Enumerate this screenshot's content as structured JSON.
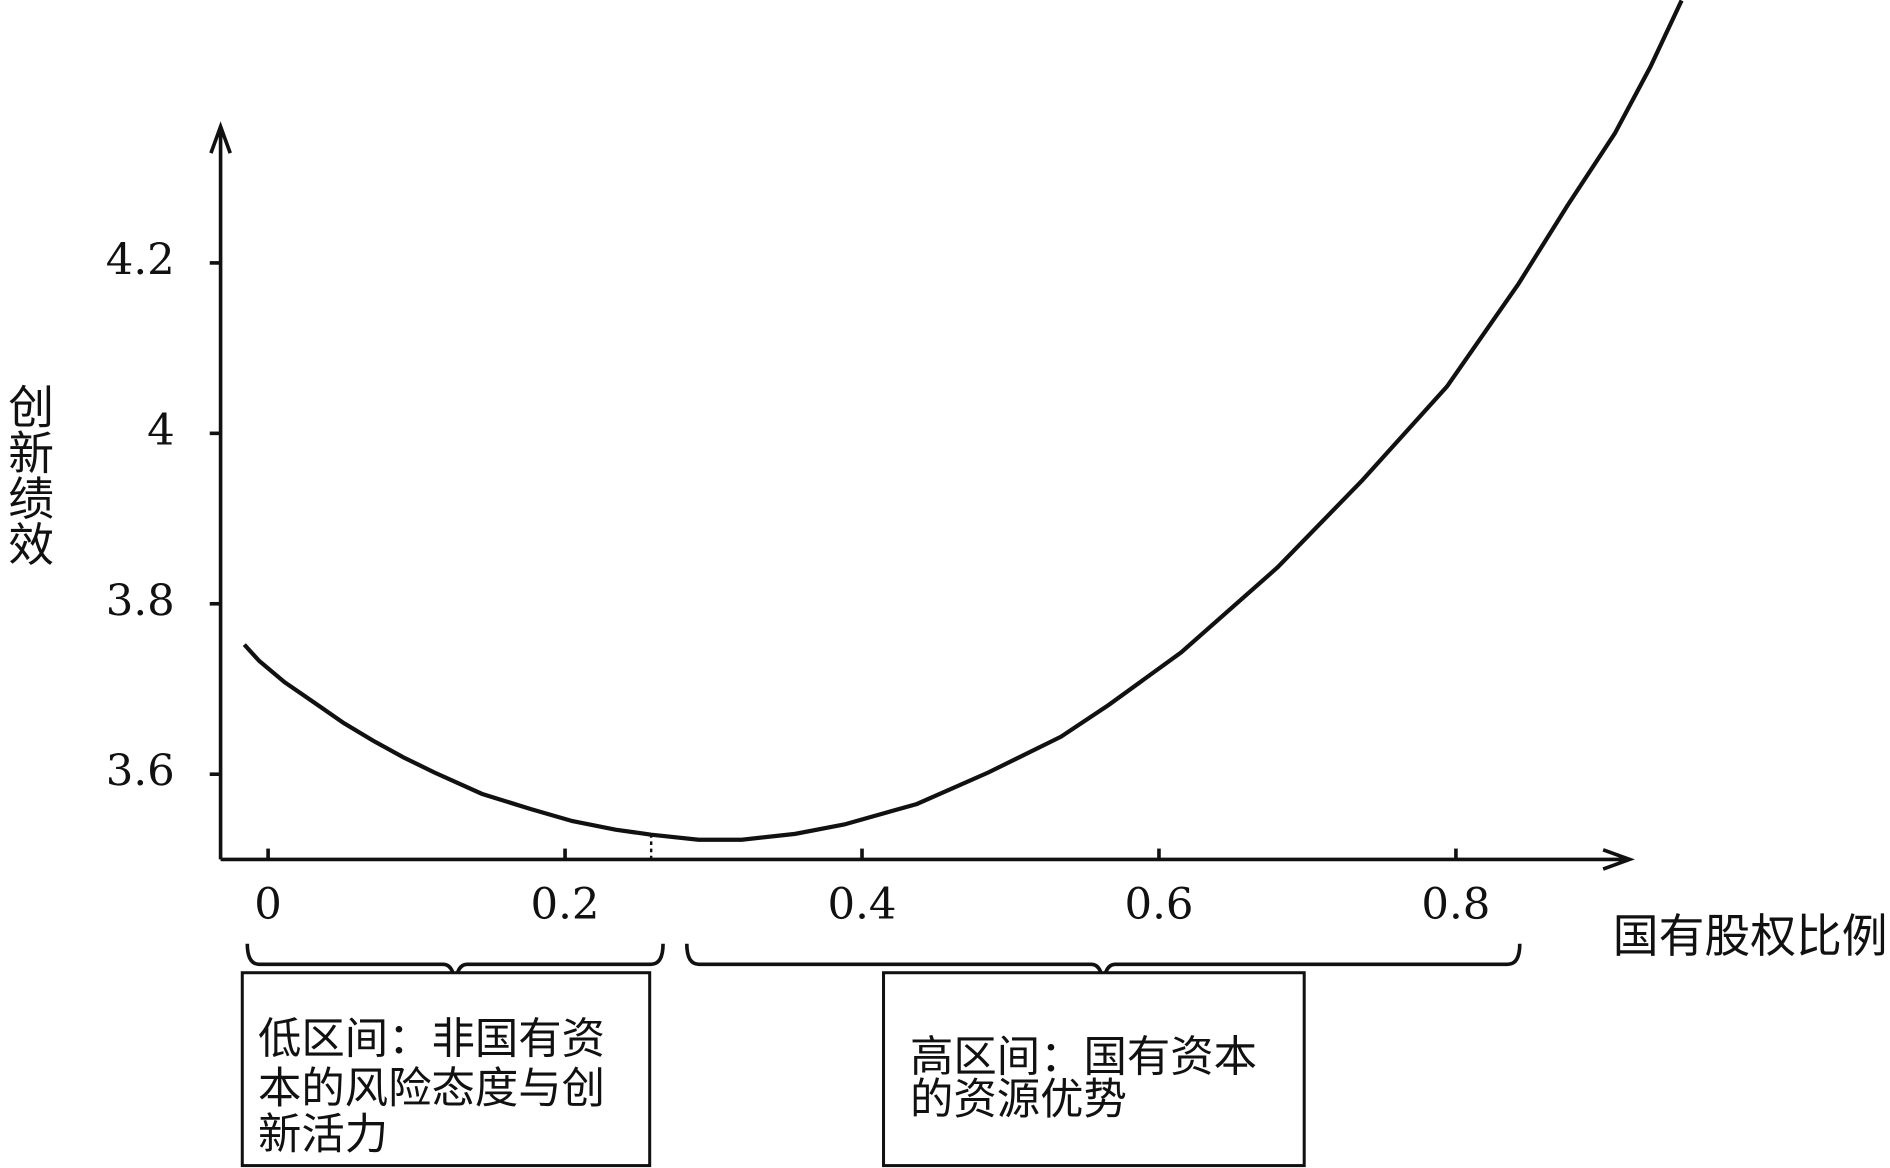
{
  "chart_data": {
    "type": "line",
    "y_label": "创新绩效",
    "x_label": "国有股权比例",
    "xlim": [
      -0.032,
      0.917
    ],
    "ylim": [
      3.5,
      4.36
    ],
    "xticks": [
      0,
      0.2,
      0.4,
      0.6,
      0.8
    ],
    "yticks": [
      3.6,
      3.8,
      4,
      4.2
    ],
    "color": "#111111",
    "series": [
      {
        "x": [
          -0.016,
          -0.006,
          0.011,
          0.032,
          0.051,
          0.071,
          0.091,
          0.112,
          0.144,
          0.177,
          0.205,
          0.234,
          0.258,
          0.29,
          0.319,
          0.355,
          0.388,
          0.437,
          0.485,
          0.534,
          0.566,
          0.615,
          0.68,
          0.737,
          0.794,
          0.842,
          0.875,
          0.907,
          0.931,
          0.952
        ],
        "values": [
          3.752,
          3.733,
          3.708,
          3.683,
          3.66,
          3.639,
          3.62,
          3.602,
          3.577,
          3.559,
          3.545,
          3.535,
          3.529,
          3.523,
          3.523,
          3.53,
          3.541,
          3.565,
          3.602,
          3.644,
          3.681,
          3.743,
          3.843,
          3.945,
          4.055,
          4.175,
          4.267,
          4.352,
          4.43,
          4.508
        ]
      }
    ],
    "threshold": {
      "x": 0.258,
      "y": 3.529
    },
    "annotations": [
      {
        "range": [
          -0.014,
          0.266
        ],
        "lines": [
          "低区间：非国有资",
          "本的风险态度与创",
          "新活力"
        ]
      },
      {
        "range": [
          0.282,
          0.843
        ],
        "lines": [
          "高区间：国有资本",
          "的资源优势"
        ]
      }
    ]
  }
}
